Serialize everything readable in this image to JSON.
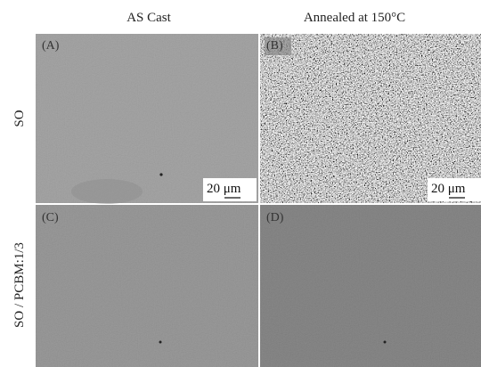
{
  "columns": [
    "AS Cast",
    "Annealed at 150°C"
  ],
  "rows": [
    "SO",
    "SO / PCBM:1/3"
  ],
  "panels": [
    {
      "label": "(A)",
      "scale_bar": "20 μm"
    },
    {
      "label": "(B)",
      "scale_bar": "20 μm"
    },
    {
      "label": "(C)"
    },
    {
      "label": "(D)"
    }
  ]
}
